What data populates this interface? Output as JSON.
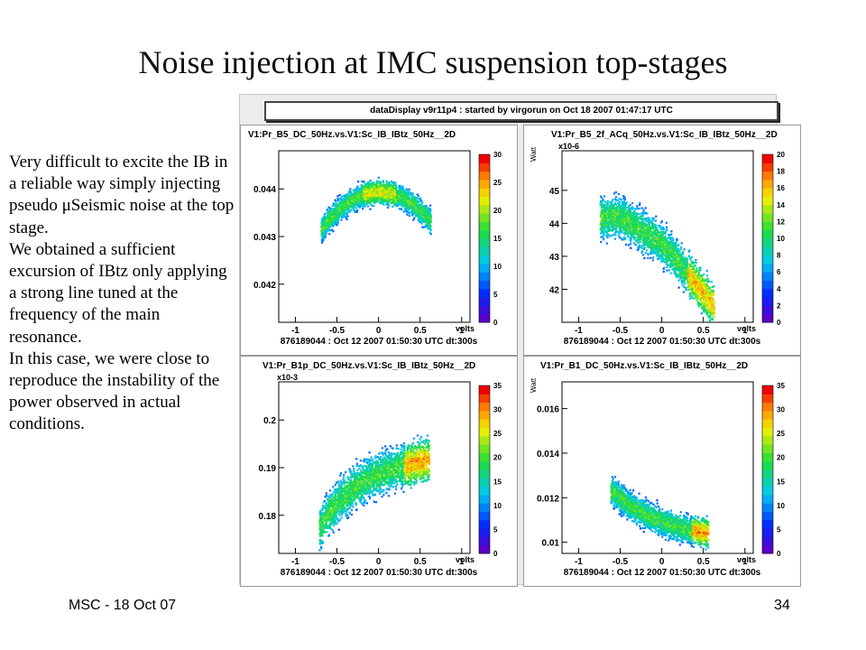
{
  "slide": {
    "title": "Noise injection at IMC suspension top-stages",
    "paragraphs": [
      "Very difficult to excite the IB in a reliable way simply injecting pseudo μSeismic noise at the top stage.",
      "We obtained a sufficient excursion of IBtz only applying a strong line tuned at the frequency of the main resonance.",
      "In this case, we were close to reproduce the instability of the power observed in actual conditions."
    ],
    "footer_left": "MSC - 18 Oct 07",
    "page_number": "34"
  },
  "display": {
    "banner": "dataDisplay v9r11p4 : started by virgorun on Oct 18 2007 01:47:17 UTC"
  },
  "chart_data": [
    {
      "type": "heatmap",
      "title": "V1:Pr_B5_DC_50Hz.vs.V1:Sc_IB_IBtz_50Hz__2D",
      "xlabel": "volts",
      "ylabel": "",
      "multiplier": "",
      "xlim": [
        -1.2,
        1.1
      ],
      "ylim": [
        0.0412,
        0.0448
      ],
      "x_ticks": [
        "-1",
        "-0.5",
        "0",
        "0.5",
        "1"
      ],
      "y_ticks": [
        "0.042",
        "0.043",
        "0.044"
      ],
      "y_tick_values": [
        0.042,
        0.043,
        0.044
      ],
      "color_scale": {
        "min": 0,
        "max": 30,
        "ticks": [
          "0",
          "5",
          "10",
          "15",
          "20",
          "25",
          "30"
        ]
      },
      "shape": "arch",
      "footer": "876189044 : Oct 12 2007 01:50:30 UTC dt:300s"
    },
    {
      "type": "heatmap",
      "title": "V1:Pr_B5_2f_ACq_50Hz.vs.V1:Sc_IB_IBtz_50Hz__2D",
      "xlabel": "volts",
      "ylabel": "Watt",
      "multiplier": "x10-6",
      "xlim": [
        -1.2,
        1.1
      ],
      "ylim": [
        41.0,
        46.2
      ],
      "x_ticks": [
        "-1",
        "-0.5",
        "0",
        "0.5",
        "1"
      ],
      "y_ticks": [
        "42",
        "43",
        "44",
        "45"
      ],
      "y_tick_values": [
        42,
        43,
        44,
        45
      ],
      "color_scale": {
        "min": 0,
        "max": 20,
        "ticks": [
          "0",
          "2",
          "4",
          "6",
          "8",
          "10",
          "12",
          "14",
          "16",
          "18",
          "20"
        ]
      },
      "shape": "descending",
      "footer": "876189044 : Oct 12 2007 01:50:30 UTC dt:300s"
    },
    {
      "type": "heatmap",
      "title": "V1:Pr_B1p_DC_50Hz.vs.V1:Sc_IB_IBtz_50Hz__2D",
      "xlabel": "volts",
      "ylabel": "",
      "multiplier": "x10-3",
      "xlim": [
        -1.2,
        1.1
      ],
      "ylim": [
        0.172,
        0.208
      ],
      "x_ticks": [
        "-1",
        "-0.5",
        "0",
        "0.5",
        "1"
      ],
      "y_ticks": [
        "0.18",
        "0.19",
        "0.2"
      ],
      "y_tick_values": [
        0.18,
        0.19,
        0.2
      ],
      "color_scale": {
        "min": 0,
        "max": 35,
        "ticks": [
          "0",
          "5",
          "10",
          "15",
          "20",
          "25",
          "30",
          "35"
        ]
      },
      "shape": "rising",
      "footer": "876189044 : Oct 12 2007 01:50:30 UTC dt:300s"
    },
    {
      "type": "heatmap",
      "title": "V1:Pr_B1_DC_50Hz.vs.V1:Sc_IB_IBtz_50Hz__2D",
      "xlabel": "volts",
      "ylabel": "Watt",
      "multiplier": "",
      "xlim": [
        -1.2,
        1.1
      ],
      "ylim": [
        0.0095,
        0.0172
      ],
      "x_ticks": [
        "-1",
        "-0.5",
        "0",
        "0.5",
        "1"
      ],
      "y_ticks": [
        "0.01",
        "0.012",
        "0.014",
        "0.016"
      ],
      "y_tick_values": [
        0.01,
        0.012,
        0.014,
        0.016
      ],
      "color_scale": {
        "min": 0,
        "max": 35,
        "ticks": [
          "0",
          "5",
          "10",
          "15",
          "20",
          "25",
          "30",
          "35"
        ]
      },
      "shape": "decay",
      "footer": "876189044 : Oct 12 2007 01:50:30 UTC dt:300s"
    }
  ]
}
